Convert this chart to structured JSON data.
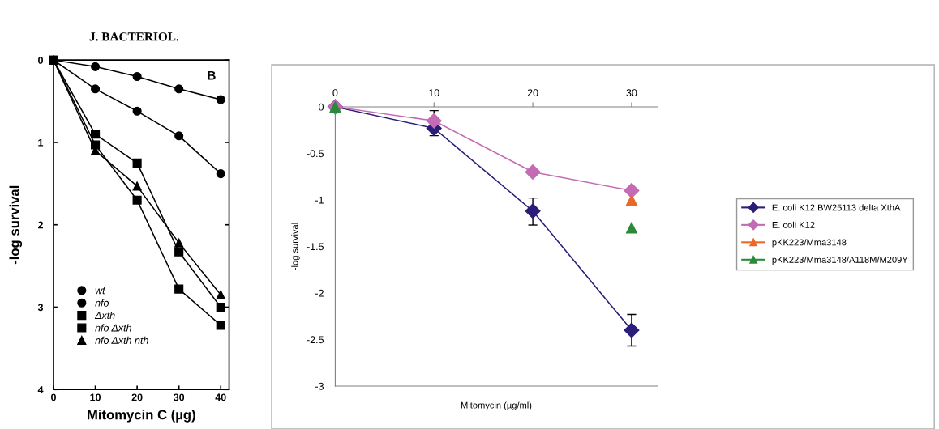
{
  "chart_data": [
    {
      "type": "line",
      "annotations": [
        "J. BACTERIOL.",
        "B"
      ],
      "xlabel": "Mitomycin C (µg)",
      "ylabel": "-log survival",
      "x": [
        0,
        10,
        20,
        30,
        40
      ],
      "xlim": [
        0,
        42
      ],
      "xticks": [
        0,
        10,
        20,
        30,
        40
      ],
      "ylim": [
        4,
        0
      ],
      "yticks": [
        0,
        1,
        2,
        3,
        4
      ],
      "legend": "bottom left",
      "grid": false,
      "series": [
        {
          "name": "wt",
          "color": "#000000",
          "marker": "circle",
          "values": [
            0,
            0.08,
            0.2,
            0.35,
            0.48
          ]
        },
        {
          "name": "nfo",
          "color": "#000000",
          "marker": "circle",
          "values": [
            0,
            0.35,
            0.62,
            0.92,
            1.38
          ]
        },
        {
          "name": "Δxth",
          "color": "#000000",
          "marker": "square",
          "values": [
            0,
            0.9,
            1.25,
            2.33,
            3.0
          ]
        },
        {
          "name": "nfo Δxth",
          "color": "#000000",
          "marker": "square",
          "values": [
            0,
            1.03,
            1.7,
            2.78,
            3.22
          ]
        },
        {
          "name": "nfo Δxth nth",
          "color": "#000000",
          "marker": "triangle",
          "values": [
            0,
            1.1,
            1.53,
            2.22,
            2.85
          ]
        }
      ]
    },
    {
      "type": "line",
      "xlabel": "Mitomycin (µg/ml)",
      "ylabel": "-log survival",
      "x": [
        0,
        10,
        20,
        30
      ],
      "xlim": [
        0,
        32.6
      ],
      "xticks": [
        0,
        10,
        20,
        30
      ],
      "ylim": [
        -3,
        0
      ],
      "yticks": [
        -3,
        -2.5,
        -2,
        -1.5,
        -1,
        -0.5,
        0
      ],
      "legend": "right",
      "grid": false,
      "series": [
        {
          "name": "E. coli K12 BW25113 delta XthA",
          "color": "#2b1e78",
          "marker": "diamond",
          "values": [
            0,
            -0.23,
            -1.12,
            -2.4
          ],
          "errors": [
            null,
            [
              -0.31,
              -0.04
            ],
            [
              -1.27,
              -0.98
            ],
            [
              -2.57,
              -2.23
            ]
          ]
        },
        {
          "name": "E. coli K12",
          "color": "#c36bb5",
          "marker": "diamond",
          "values": [
            0,
            -0.15,
            -0.7,
            -0.9
          ]
        },
        {
          "name": "pKK223/Mma3148",
          "type": "scatter",
          "color": "#e8692a",
          "marker": "triangle",
          "values": [
            null,
            null,
            null,
            -1.0
          ]
        },
        {
          "name": "pKK223/Mma3148/A118M/M209Y",
          "type": "scatter",
          "color": "#2a8a3a",
          "marker": "triangle",
          "values": [
            0,
            null,
            null,
            -1.3
          ]
        }
      ]
    }
  ]
}
